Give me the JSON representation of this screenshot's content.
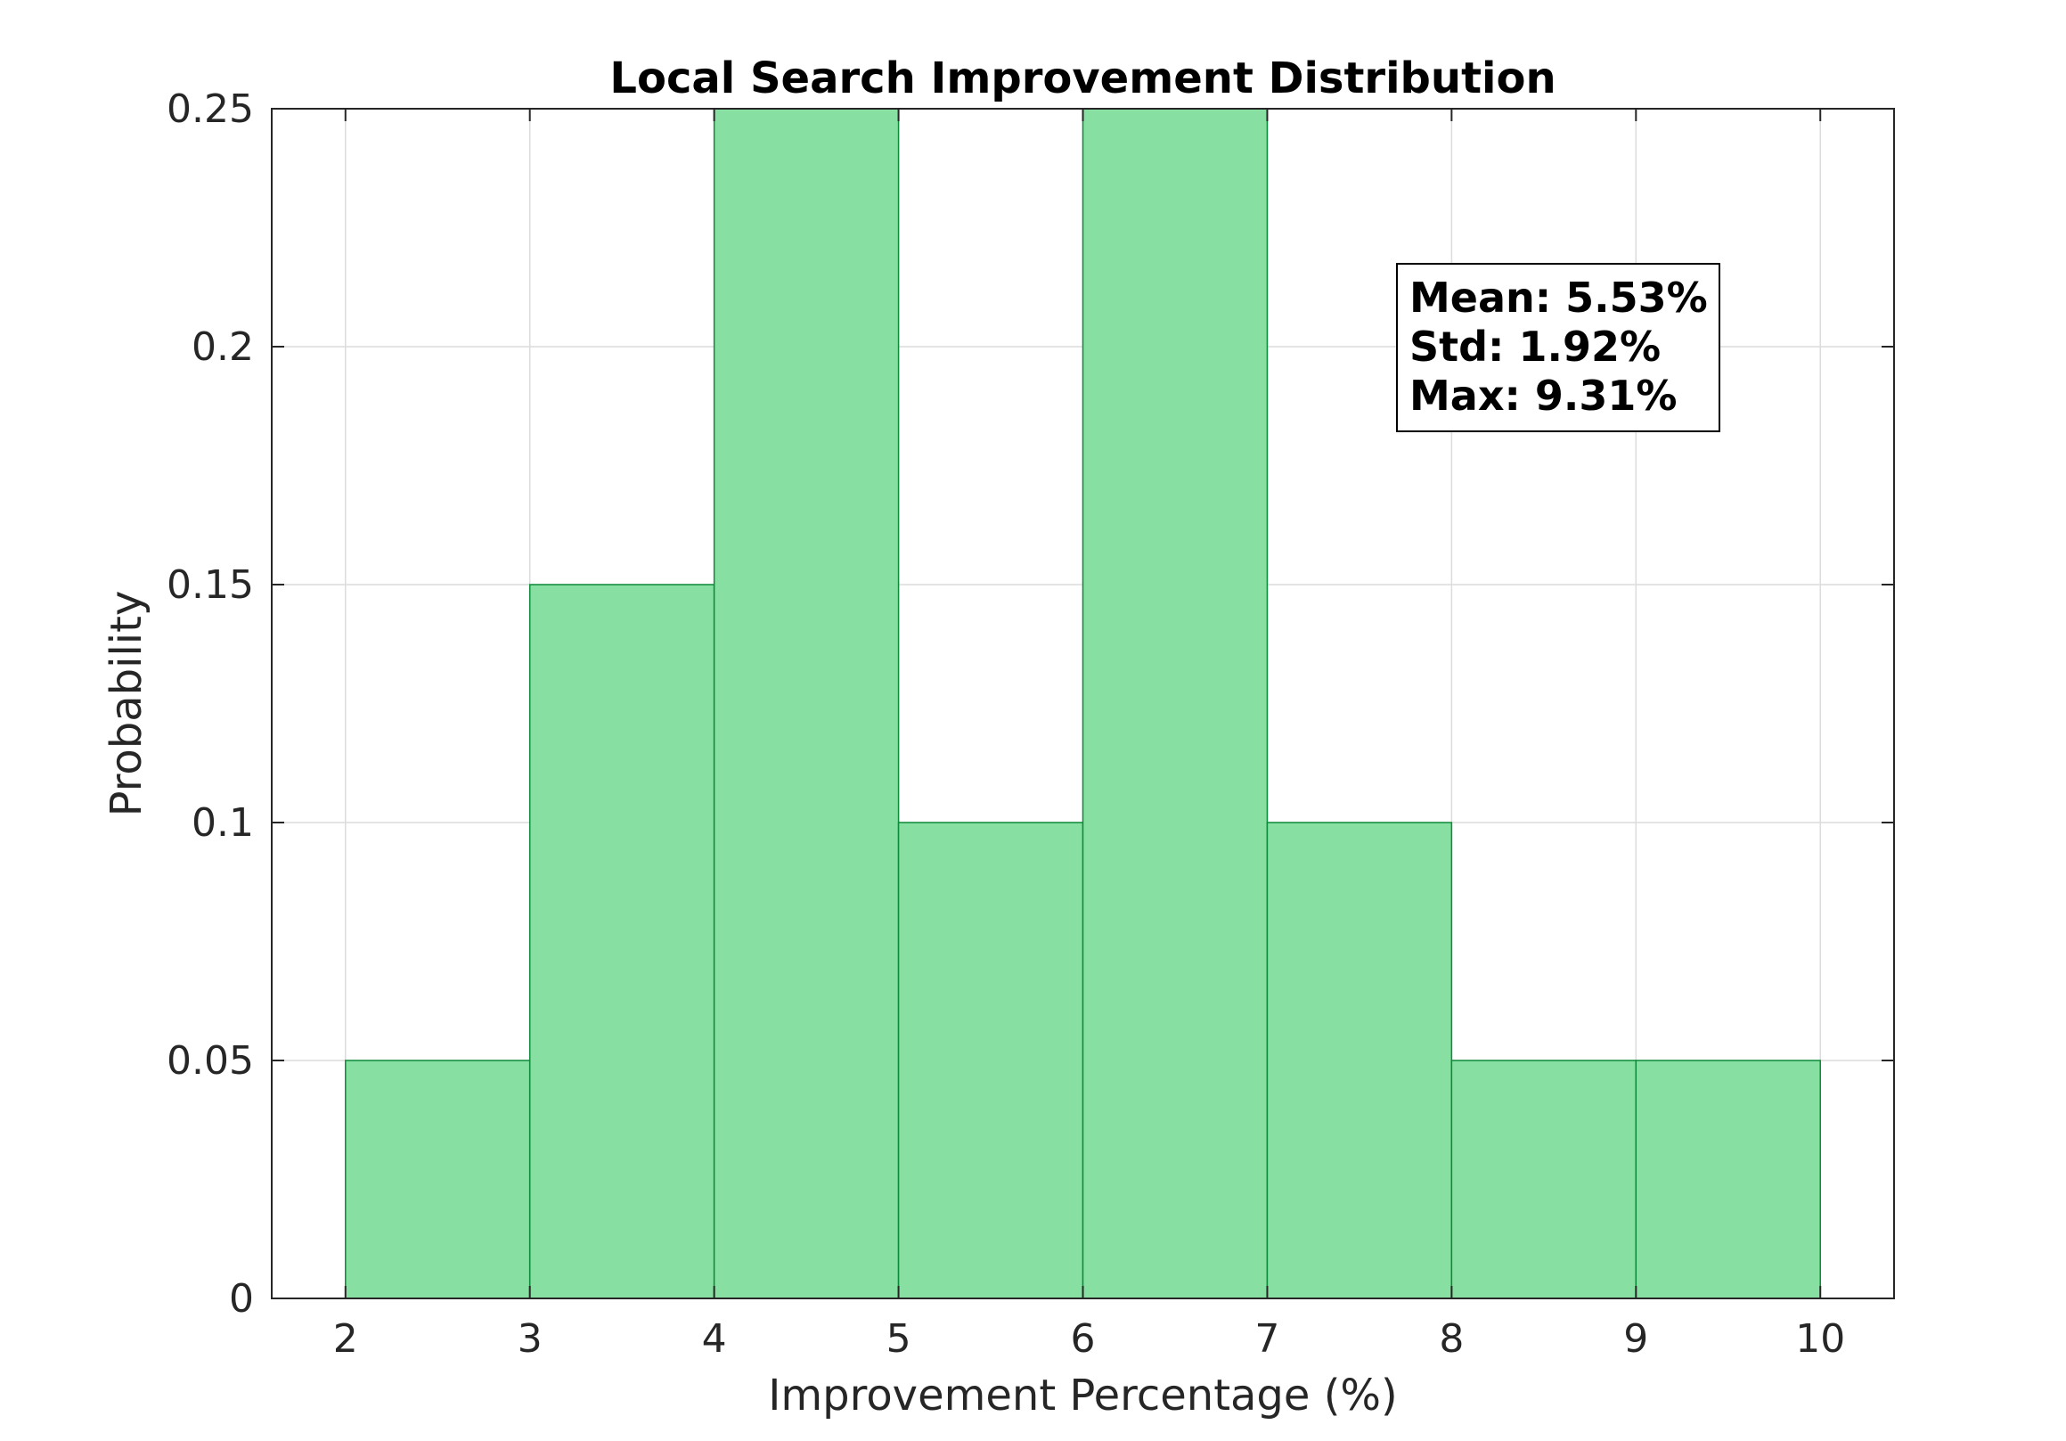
{
  "chart_data": {
    "type": "bar",
    "title": "Local Search Improvement Distribution",
    "xlabel": "Improvement Percentage (%)",
    "ylabel": "Probability",
    "bin_edges": [
      2,
      3,
      4,
      5,
      6,
      7,
      8,
      9,
      10
    ],
    "values": [
      0.05,
      0.15,
      0.25,
      0.1,
      0.25,
      0.1,
      0.05,
      0.05
    ],
    "xlim": [
      1.6,
      10.4
    ],
    "ylim": [
      0,
      0.25
    ],
    "xticks": [
      2,
      3,
      4,
      5,
      6,
      7,
      8,
      9,
      10
    ],
    "xtick_labels": [
      "2",
      "3",
      "4",
      "5",
      "6",
      "7",
      "8",
      "9",
      "10"
    ],
    "yticks": [
      0,
      0.05,
      0.1,
      0.15,
      0.2,
      0.25
    ],
    "ytick_labels": [
      "0",
      "0.05",
      "0.1",
      "0.15",
      "0.2",
      "0.25"
    ],
    "grid": true,
    "bar_color": "#87DFA1",
    "bar_edge_color": "#0E8B3A",
    "annotation": {
      "lines": [
        "Mean: 5.53%",
        "Std: 1.92%",
        "Max: 9.31%"
      ],
      "placement": "upper-right"
    }
  }
}
